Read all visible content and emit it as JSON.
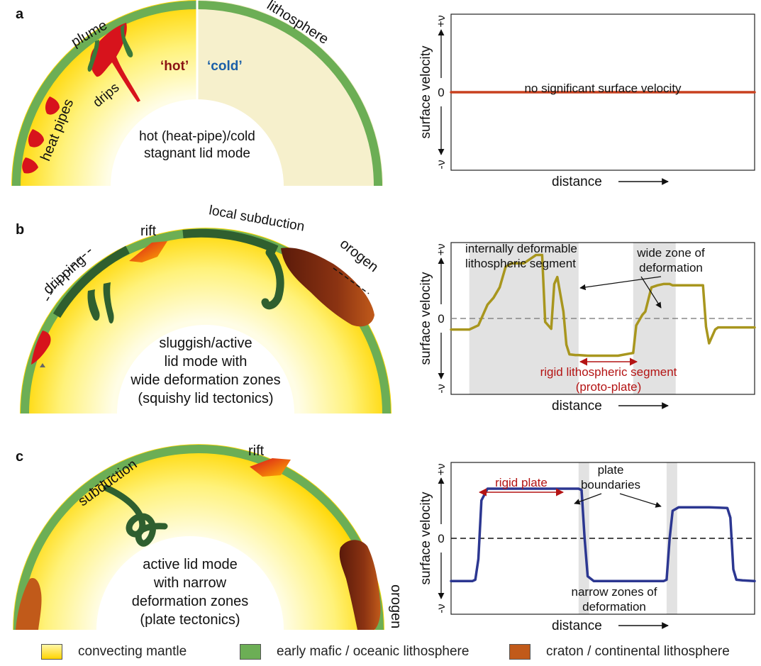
{
  "colors": {
    "mantle_light": "#fffde8",
    "mantle_deep": "#ffd400",
    "lithosphere": "#6cae55",
    "lithosphere_dark": "#2f5f2f",
    "craton": "#c15a1a",
    "hot_red": "#d7131c",
    "cold_side": "#f6f0cc",
    "velocity_a": "#c8401f",
    "velocity_b": "#a8961e",
    "velocity_c": "#2c3791",
    "annotation_red": "#b41414",
    "deform_zone": "#e2e2e2"
  },
  "panels": {
    "a": {
      "letter": "a",
      "plume": "plume",
      "lithosphere": "lithosphere",
      "hot": "‘hot’",
      "cold": "‘cold’",
      "drips": "drips",
      "heat_pipes": "heat pipes",
      "mode_line1": "hot (heat-pipe)/cold",
      "mode_line2": "stagnant lid mode",
      "chart": {
        "ylabel": "surface velocity",
        "xlabel": "distance",
        "tick_pos": "+ν",
        "tick_zero": "0",
        "tick_neg": "-ν",
        "annotation": "no significant surface velocity"
      }
    },
    "b": {
      "letter": "b",
      "dripping": "dripping",
      "rift": "rift",
      "local_subduction": "local subduction",
      "orogen": "orogen",
      "mode_line1": "sluggish/active",
      "mode_line2": "lid mode with",
      "mode_line3": "wide deformation zones",
      "mode_line4": "(squishy lid tectonics)",
      "chart": {
        "ylabel": "surface velocity",
        "xlabel": "distance",
        "tick_pos": "+ν",
        "tick_zero": "0",
        "tick_neg": "-ν",
        "ann_internal_1": "internally deformable",
        "ann_internal_2": "lithospheric segment",
        "ann_wide_1": "wide zone of",
        "ann_wide_2": "deformation",
        "ann_rigid_1": "rigid lithospheric segment",
        "ann_rigid_2": "(proto-plate)"
      }
    },
    "c": {
      "letter": "c",
      "subduction": "subduction",
      "rift": "rift",
      "orogen": "orogen",
      "mode_line1": "active lid mode",
      "mode_line2": "with narrow",
      "mode_line3": "deformation zones",
      "mode_line4": "(plate tectonics)",
      "chart": {
        "ylabel": "surface velocity",
        "xlabel": "distance",
        "tick_pos": "+ν",
        "tick_zero": "0",
        "tick_neg": "-ν",
        "ann_rigid": "rigid plate",
        "ann_bound_1": "plate",
        "ann_bound_2": "boundaries",
        "ann_narrow_1": "narrow zones of",
        "ann_narrow_2": "deformation"
      }
    }
  },
  "chart_data": [
    {
      "type": "line",
      "panel": "a",
      "xlabel": "distance",
      "ylabel": "surface velocity",
      "yticks": [
        "-ν",
        "0",
        "+ν"
      ],
      "ylim": [
        -1.1,
        1.1
      ],
      "series": [
        {
          "x": [
            0,
            1
          ],
          "values": [
            0,
            0
          ]
        }
      ]
    },
    {
      "type": "line",
      "panel": "b",
      "xlabel": "distance",
      "ylabel": "surface velocity",
      "yticks": [
        "-ν",
        "0",
        "+ν"
      ],
      "ylim": [
        -1.1,
        1.1
      ],
      "shaded_zones": [
        [
          0.06,
          0.42
        ],
        [
          0.6,
          0.74
        ]
      ],
      "series": [
        {
          "x": [
            0,
            0.06,
            0.09,
            0.12,
            0.14,
            0.16,
            0.18,
            0.2,
            0.24,
            0.28,
            0.3,
            0.31,
            0.33,
            0.34,
            0.35,
            0.37,
            0.38,
            0.39,
            0.41,
            0.42,
            0.45,
            0.55,
            0.6,
            0.61,
            0.63,
            0.64,
            0.66,
            0.68,
            0.7,
            0.72,
            0.73,
            0.78,
            0.83,
            0.84,
            0.85,
            0.87,
            0.88,
            0.89,
            1.0
          ],
          "values": [
            -0.16,
            -0.16,
            -0.1,
            0.2,
            0.3,
            0.45,
            0.75,
            0.8,
            0.8,
            0.92,
            0.92,
            -0.05,
            -0.15,
            0.5,
            0.6,
            0.1,
            -0.38,
            -0.52,
            -0.53,
            -0.53,
            -0.54,
            -0.54,
            -0.5,
            -0.1,
            0.05,
            0.1,
            0.45,
            0.48,
            0.5,
            0.5,
            0.48,
            0.48,
            0.48,
            -0.12,
            -0.36,
            -0.16,
            -0.13,
            -0.13,
            -0.13
          ]
        }
      ]
    },
    {
      "type": "line",
      "panel": "c",
      "xlabel": "distance",
      "ylabel": "surface velocity",
      "yticks": [
        "-ν",
        "0",
        "+ν"
      ],
      "ylim": [
        -1.1,
        1.1
      ],
      "shaded_zones": [
        [
          0.42,
          0.455
        ],
        [
          0.71,
          0.745
        ]
      ],
      "series": [
        {
          "x": [
            0,
            0.07,
            0.08,
            0.09,
            0.1,
            0.12,
            0.3,
            0.42,
            0.43,
            0.44,
            0.45,
            0.47,
            0.6,
            0.7,
            0.71,
            0.72,
            0.73,
            0.75,
            0.85,
            0.91,
            0.92,
            0.93,
            0.94,
            0.96,
            1.0
          ],
          "values": [
            -0.62,
            -0.62,
            -0.6,
            -0.3,
            0.55,
            0.72,
            0.72,
            0.72,
            0.7,
            0.0,
            -0.55,
            -0.62,
            -0.62,
            -0.62,
            -0.6,
            0.0,
            0.4,
            0.45,
            0.45,
            0.44,
            0.3,
            -0.45,
            -0.6,
            -0.61,
            -0.62
          ]
        }
      ]
    }
  ],
  "legend": {
    "mantle": "convecting mantle",
    "lithosphere": "early mafic / oceanic lithosphere",
    "craton": "craton / continental lithosphere"
  }
}
